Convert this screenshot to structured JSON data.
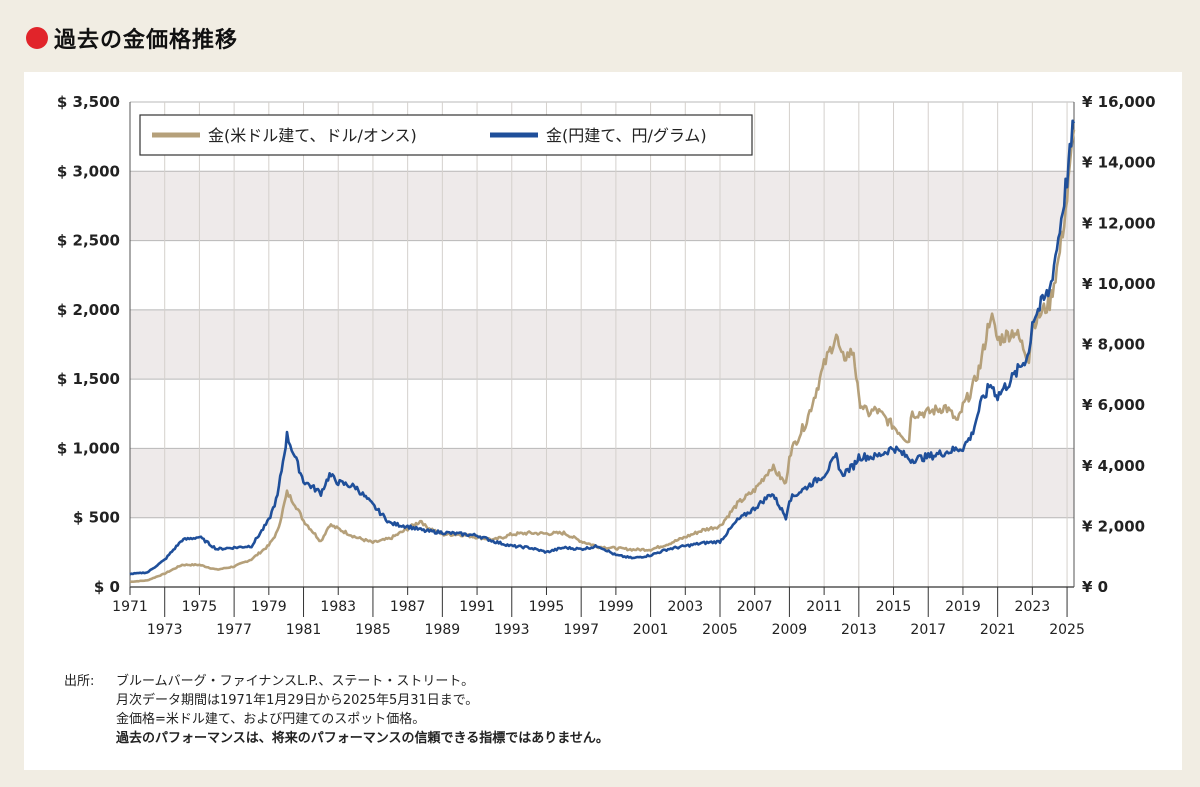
{
  "header": {
    "title": "過去の金価格推移"
  },
  "chart_data": {
    "type": "line",
    "title": "",
    "xlim": [
      1971,
      2025.4
    ],
    "ylim_left": [
      0,
      3500
    ],
    "ylim_right": [
      0,
      16000
    ],
    "left_ticks": [
      0,
      500,
      1000,
      1500,
      2000,
      2500,
      3000,
      3500
    ],
    "left_tick_labels": [
      "$ 0",
      "$ 500",
      "$ 1,000",
      "$ 1,500",
      "$ 2,000",
      "$ 2,500",
      "$ 3,000",
      "$ 3,500"
    ],
    "right_ticks": [
      0,
      2000,
      4000,
      6000,
      8000,
      10000,
      12000,
      14000,
      16000
    ],
    "right_tick_labels": [
      "¥ 0",
      "¥ 2,000",
      "¥ 4,000",
      "¥ 6,000",
      "¥ 8,000",
      "¥ 10,000",
      "¥ 12,000",
      "¥ 14,000",
      "¥ 16,000"
    ],
    "x_ticks_top": [
      "1971",
      "1975",
      "1979",
      "1983",
      "1987",
      "1991",
      "1995",
      "1999",
      "2003",
      "2007",
      "2011",
      "2015",
      "2019",
      "2023"
    ],
    "x_ticks_bottom": [
      "1973",
      "1977",
      "1981",
      "1985",
      "1989",
      "1993",
      "1997",
      "2001",
      "2005",
      "2009",
      "2013",
      "2017",
      "2021",
      "2025"
    ],
    "grid": true,
    "legend_position": "top-left",
    "colors": {
      "usd": "#b5a07a",
      "jpy": "#1f4f9a",
      "band": "#eeeaea",
      "grid": "#b8b8b8"
    },
    "series": [
      {
        "name": "金(米ドル建て、ドル/オンス)",
        "axis": "left",
        "x": [
          1971,
          1972,
          1973,
          1974,
          1975,
          1976,
          1977,
          1978,
          1979,
          1979.5,
          1980.05,
          1980.5,
          1981,
          1982,
          1982.5,
          1983,
          1984,
          1985,
          1986,
          1987,
          1987.8,
          1988,
          1989,
          1990,
          1991,
          1992,
          1993,
          1994,
          1995,
          1996,
          1997,
          1998,
          1999,
          2000,
          2001,
          2002,
          2003,
          2004,
          2005,
          2006,
          2007,
          2008,
          2008.8,
          2009,
          2010,
          2011,
          2011.7,
          2012,
          2012.7,
          2013,
          2013.5,
          2014,
          2015,
          2015.9,
          2016,
          2017,
          2018,
          2018.7,
          2019,
          2019.5,
          2020,
          2020.6,
          2021,
          2022,
          2022.8,
          2023,
          2024,
          2024.5,
          2025,
          2025.4
        ],
        "values": [
          37,
          48,
          97,
          160,
          160,
          125,
          148,
          200,
          300,
          400,
          680,
          600,
          480,
          330,
          450,
          420,
          360,
          320,
          350,
          420,
          480,
          440,
          380,
          380,
          360,
          340,
          380,
          390,
          385,
          390,
          330,
          290,
          280,
          270,
          270,
          310,
          360,
          410,
          440,
          600,
          700,
          870,
          740,
          960,
          1200,
          1600,
          1820,
          1650,
          1700,
          1350,
          1250,
          1280,
          1160,
          1050,
          1250,
          1260,
          1300,
          1190,
          1300,
          1420,
          1600,
          1970,
          1780,
          1850,
          1650,
          1900,
          2050,
          2350,
          2800,
          3300
        ]
      },
      {
        "name": "金(円建て、円/グラム)",
        "axis": "right",
        "x": [
          1971,
          1972,
          1973,
          1974,
          1975,
          1976,
          1977,
          1978,
          1979,
          1979.5,
          1980.05,
          1980.5,
          1981,
          1982,
          1982.5,
          1983,
          1984,
          1985,
          1986,
          1987,
          1988,
          1989,
          1990,
          1991,
          1992,
          1993,
          1994,
          1995,
          1996,
          1997,
          1998,
          1999,
          2000,
          2001,
          2002,
          2003,
          2004,
          2005,
          2006,
          2007,
          2008,
          2008.8,
          2009,
          2010,
          2011,
          2011.7,
          2012,
          2012.7,
          2013,
          2014,
          2015,
          2016,
          2017,
          2018,
          2019,
          2019.5,
          2020,
          2020.6,
          2021,
          2022,
          2022.8,
          2023,
          2024,
          2024.5,
          2025,
          2025.4
        ],
        "values": [
          430,
          480,
          900,
          1550,
          1650,
          1250,
          1300,
          1350,
          2200,
          3000,
          5000,
          4300,
          3500,
          3100,
          3700,
          3450,
          3300,
          2700,
          2100,
          2000,
          1850,
          1800,
          1750,
          1700,
          1500,
          1350,
          1300,
          1150,
          1300,
          1250,
          1350,
          1050,
          950,
          1050,
          1250,
          1350,
          1450,
          1500,
          2200,
          2600,
          3100,
          2300,
          2900,
          3300,
          3700,
          4300,
          3700,
          4000,
          4300,
          4300,
          4600,
          4200,
          4300,
          4450,
          4600,
          5000,
          6000,
          6700,
          6300,
          7000,
          7700,
          8800,
          9800,
          11500,
          13500,
          15300
        ]
      }
    ]
  },
  "legend": {
    "usd_label": "金(米ドル建て、ドル/オンス)",
    "jpy_label": "金(円建て、円/グラム)"
  },
  "notes": {
    "source_label": "出所:",
    "line1": "ブルームバーグ・ファイナンスL.P.、ステート・ストリート。",
    "line2": "月次データ期間は1971年1月29日から2025年5月31日まで。",
    "line3": "金価格=米ドル建て、および円建てのスポット価格。",
    "line4": "過去のパフォーマンスは、将来のパフォーマンスの信頼できる指標ではありません。"
  }
}
